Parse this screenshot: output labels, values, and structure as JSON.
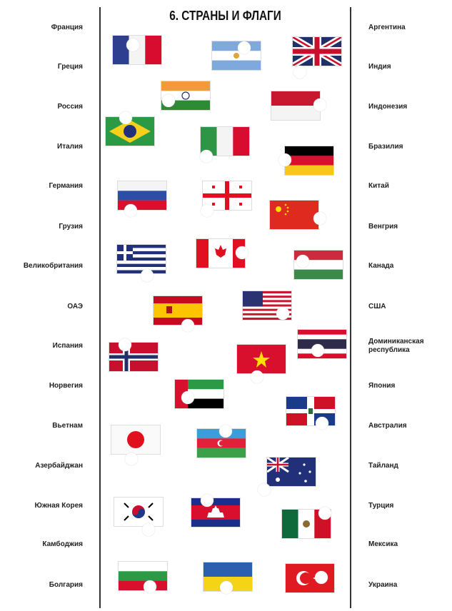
{
  "title": "6. СТРАНЫ И ФЛАГИ",
  "left_labels": [
    "Франция",
    "Греция",
    "Россия",
    "Италия",
    "Германия",
    "Грузия",
    "Великобритания",
    "ОАЭ",
    "Испания",
    "Норвегия",
    "Вьетнам",
    "Азербайджан",
    "Южная Корея",
    "Камбоджия",
    "Болгария"
  ],
  "right_labels": [
    "Аргентина",
    "Индия",
    "Индонезия",
    "Бразилия",
    "Китай",
    "Венгрия",
    "Канада",
    "США",
    "Доминиканская республика",
    "Япония",
    "Австралия",
    "Тайланд",
    "Турция",
    "Мексика",
    "Украина"
  ],
  "flags": [
    "france-flag",
    "argentina-flag",
    "uk-flag",
    "india-flag",
    "indonesia-flag",
    "brazil-flag",
    "italy-flag",
    "germany-flag",
    "russia-flag",
    "georgia-flag",
    "china-flag",
    "greece-flag",
    "canada-flag",
    "hungary-flag",
    "spain-flag",
    "usa-flag",
    "thailand-flag",
    "norway-flag",
    "vietnam-flag",
    "uae-flag",
    "dominican-republic-flag",
    "japan-flag",
    "azerbaijan-flag",
    "australia-flag",
    "south-korea-flag",
    "cambodia-flag",
    "mexico-flag",
    "bulgaria-flag",
    "ukraine-flag",
    "turkey-flag"
  ]
}
